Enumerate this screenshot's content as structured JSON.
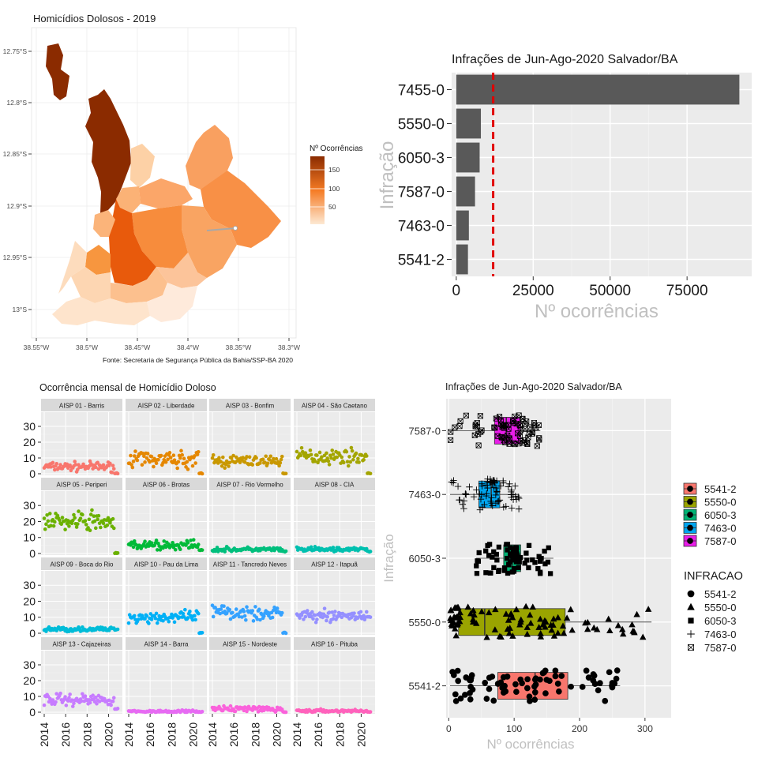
{
  "colors": {
    "map_low": "#fde3c6",
    "map_high": "#8b2b00",
    "map_border": "#b9b9b9",
    "panel_bg": "#ebebeb",
    "strip_bg": "#d9d9d9",
    "grid": "#ffffff",
    "bar": "#595959",
    "ref_line": "#e00000"
  },
  "map": {
    "title": "Homicídios Dolosos - 2019",
    "caption": "Fonte: Secretaria de Segurança Pública da Bahia/SSP-BA 2020",
    "legend_title": "Nº Ocorrências",
    "legend_ticks": [
      "150",
      "100",
      "50"
    ],
    "lat_ticks": [
      "12.75°S",
      "12.8°S",
      "12.85°S",
      "12.9°S",
      "12.95°S",
      "13°S"
    ],
    "lon_ticks": [
      "38.55°W",
      "38.5°W",
      "38.45°W",
      "38.4°W",
      "38.35°W",
      "38.3°W"
    ]
  },
  "chart_data": [
    {
      "id": "bar",
      "type": "bar",
      "title": "Infrações de Jun-Ago-2020 Salvador/BA",
      "xlabel": "Nº ocorrências",
      "ylabel": "Infração",
      "orientation": "horizontal",
      "categories": [
        "7455-0",
        "5550-0",
        "6050-3",
        "7587-0",
        "7463-0",
        "5541-2"
      ],
      "values": [
        92000,
        8000,
        7600,
        6100,
        4100,
        3800
      ],
      "ref_line": 12000,
      "xlim": [
        -1500,
        96000
      ],
      "x_ticks": [
        "0",
        "25000",
        "50000",
        "75000"
      ],
      "x_tick_values": [
        0,
        25000,
        50000,
        75000
      ]
    },
    {
      "id": "facet",
      "type": "scatter",
      "title": "Ocorrência mensal de Homicídio Doloso",
      "ylim": [
        0,
        35
      ],
      "y_ticks": [
        "0",
        "10",
        "20",
        "30"
      ],
      "x_ticks": [
        "2014",
        "2016",
        "2018",
        "2020"
      ],
      "facets": [
        {
          "label": "AISP 01 - Barris",
          "color": "#f8766d",
          "level": 4.5,
          "spread": 3,
          "end": 0
        },
        {
          "label": "AISP 02 - Liberdade",
          "color": "#e58700",
          "level": 9,
          "spread": 5,
          "end": 0
        },
        {
          "label": "AISP 03 - Bonfim",
          "color": "#c99800",
          "level": 8,
          "spread": 4,
          "end": 0
        },
        {
          "label": "AISP 04 - São Caetano",
          "color": "#a3a500",
          "level": 11,
          "spread": 5,
          "end": 0
        },
        {
          "label": "AISP 05 - Periperi",
          "color": "#6bb100",
          "level": 20,
          "spread": 6,
          "end": 0
        },
        {
          "label": "AISP 06 - Brotas",
          "color": "#00ba38",
          "level": 5,
          "spread": 3,
          "end": 2
        },
        {
          "label": "AISP 07 - Rio Vermelho",
          "color": "#00bf7d",
          "level": 2.5,
          "spread": 1.5,
          "end": 1
        },
        {
          "label": "AISP 08 - CIA",
          "color": "#00c0af",
          "level": 2.5,
          "spread": 1.5,
          "end": 1
        },
        {
          "label": "AISP 09 - Boca do Rio",
          "color": "#00bcd8",
          "level": 2.5,
          "spread": 1.5,
          "end": 2
        },
        {
          "label": "AISP 10 - Pau da Lima",
          "color": "#00b0f6",
          "level": 10,
          "spread": 4,
          "end": 0
        },
        {
          "label": "AISP 11 - Tancredo Neves",
          "color": "#35a2ff",
          "level": 13,
          "spread": 5,
          "end": 0
        },
        {
          "label": "AISP 12 - Itapuã",
          "color": "#9590ff",
          "level": 11,
          "spread": 3.5,
          "end": 10
        },
        {
          "label": "AISP 13 - Cajazeiras",
          "color": "#c77cff",
          "level": 8,
          "spread": 4,
          "end": 2
        },
        {
          "label": "AISP 14 - Barra",
          "color": "#e76bf3",
          "level": 0.5,
          "spread": 0.8,
          "end": 0
        },
        {
          "label": "AISP 15 - Nordeste",
          "color": "#fa62db",
          "level": 2,
          "spread": 2,
          "end": 0
        },
        {
          "label": "AISP 16 - Pituba",
          "color": "#ff62bc",
          "level": 0.8,
          "spread": 1,
          "end": 0
        }
      ]
    },
    {
      "id": "box",
      "type": "boxplot",
      "title": "Infrações de Jun-Ago-2020 Salvador/BA",
      "xlabel": "Nº ocorrências",
      "ylabel": "Infração",
      "xlim": [
        -4,
        340
      ],
      "x_ticks": [
        "0",
        "100",
        "200",
        "300"
      ],
      "x_tick_values": [
        0,
        100,
        200,
        300
      ],
      "legend_fill_title": "",
      "legend_shape_title": "INFRACAO",
      "groups": [
        {
          "name": "7587-0",
          "color": "#e81de8",
          "q1": 70,
          "median": 88,
          "q3": 110,
          "wmin": 2,
          "wmax": 140,
          "shape": "boxx"
        },
        {
          "name": "7463-0",
          "color": "#00a5ef",
          "q1": 46,
          "median": 65,
          "q3": 78,
          "wmin": 2,
          "wmax": 108,
          "shape": "plus"
        },
        {
          "name": "6050-3",
          "color": "#00b374",
          "q1": 84,
          "median": 97,
          "q3": 110,
          "wmin": 42,
          "wmax": 160,
          "shape": "square"
        },
        {
          "name": "5550-0",
          "color": "#9aa400",
          "q1": 15,
          "median": 55,
          "q3": 178,
          "wmin": 2,
          "wmax": 310,
          "shape": "triangle"
        },
        {
          "name": "5541-2",
          "color": "#f8766d",
          "q1": 75,
          "median": 132,
          "q3": 182,
          "wmin": 2,
          "wmax": 262,
          "shape": "circle"
        }
      ],
      "legend_order": [
        "5541-2",
        "5550-0",
        "6050-3",
        "7463-0",
        "7587-0"
      ]
    }
  ]
}
